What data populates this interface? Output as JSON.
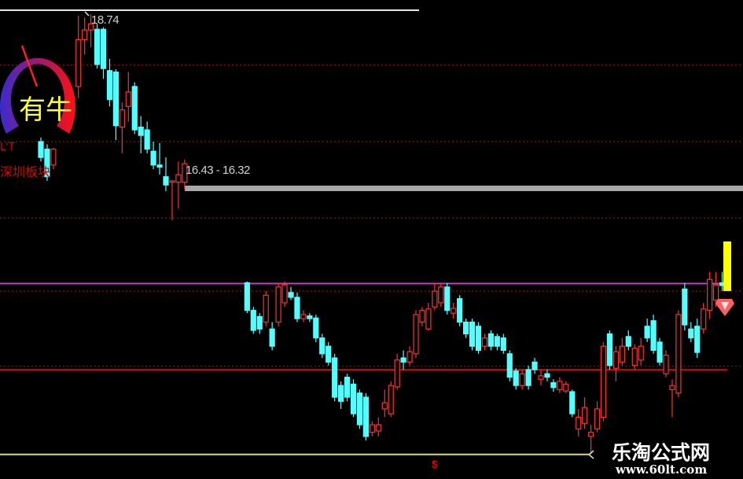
{
  "chart_data": {
    "type": "candlestick",
    "title": "",
    "ylim": [
      12.3,
      18.9
    ],
    "grid": false,
    "candle_format": [
      "open",
      "high",
      "low",
      "close"
    ],
    "candles": [
      [
        16.89,
        16.95,
        16.6,
        16.66
      ],
      [
        16.78,
        16.85,
        16.32,
        16.38
      ],
      [
        16.55,
        16.8,
        16.49,
        16.78
      ],
      null,
      null,
      null,
      [
        17.69,
        18.72,
        17.52,
        18.37
      ],
      [
        18.37,
        18.69,
        18.15,
        18.51
      ],
      [
        18.51,
        18.74,
        18.26,
        18.6
      ],
      [
        18.52,
        18.6,
        17.95,
        18.01
      ],
      [
        18.52,
        18.55,
        17.8,
        17.95
      ],
      [
        17.92,
        18.09,
        17.4,
        17.5
      ],
      [
        17.9,
        17.94,
        16.91,
        17.12
      ],
      [
        17.1,
        17.46,
        16.72,
        17.35
      ],
      [
        17.4,
        17.9,
        17.18,
        17.61
      ],
      [
        17.69,
        17.75,
        17.0,
        17.06
      ],
      [
        17.1,
        17.26,
        16.72,
        16.98
      ],
      [
        17.06,
        17.18,
        16.72,
        16.78
      ],
      [
        16.75,
        16.89,
        16.49,
        16.55
      ],
      [
        16.55,
        16.87,
        16.41,
        16.52
      ],
      [
        16.38,
        16.66,
        16.17,
        16.26
      ],
      [
        16.3,
        16.32,
        15.75,
        16.32
      ],
      [
        16.3,
        16.6,
        15.92,
        16.41
      ],
      [
        16.3,
        16.63,
        16.2,
        16.57
      ],
      null,
      null,
      null,
      null,
      null,
      null,
      null,
      null,
      null,
      [
        14.84,
        14.86,
        14.4,
        14.44
      ],
      [
        14.44,
        14.49,
        14.1,
        14.15
      ],
      [
        14.35,
        14.4,
        14.1,
        14.17
      ],
      [
        14.27,
        14.72,
        14.21,
        14.66
      ],
      [
        14.17,
        14.27,
        13.86,
        13.92
      ],
      [
        14.27,
        14.84,
        14.21,
        14.78
      ],
      [
        14.55,
        14.86,
        14.49,
        14.81
      ],
      [
        14.7,
        14.78,
        14.59,
        14.63
      ],
      [
        14.63,
        14.7,
        14.27,
        14.32
      ],
      [
        14.32,
        14.44,
        14.27,
        14.38
      ],
      [
        14.36,
        14.4,
        14.27,
        14.32
      ],
      [
        14.33,
        14.38,
        13.98,
        14.04
      ],
      [
        14.04,
        14.1,
        13.75,
        13.81
      ],
      [
        13.92,
        13.98,
        13.64,
        13.69
      ],
      [
        13.75,
        13.81,
        13.12,
        13.18
      ],
      [
        13.35,
        13.41,
        13.01,
        13.12
      ],
      [
        13.47,
        13.52,
        13.12,
        13.18
      ],
      [
        13.37,
        13.44,
        12.89,
        12.94
      ],
      [
        13.24,
        13.29,
        12.72,
        12.78
      ],
      [
        13.18,
        13.24,
        12.55,
        12.61
      ],
      [
        12.67,
        12.83,
        12.61,
        12.78
      ],
      [
        12.69,
        12.89,
        12.61,
        12.78
      ],
      [
        13.01,
        13.29,
        12.89,
        13.1
      ],
      [
        12.94,
        13.41,
        12.89,
        13.35
      ],
      [
        13.33,
        13.81,
        13.29,
        13.72
      ],
      [
        13.75,
        13.86,
        13.58,
        13.69
      ],
      [
        13.69,
        13.92,
        13.64,
        13.84
      ],
      [
        13.81,
        14.44,
        13.75,
        14.38
      ],
      [
        14.27,
        14.49,
        14.21,
        14.44
      ],
      [
        14.17,
        14.55,
        14.15,
        14.46
      ],
      [
        14.49,
        14.84,
        14.44,
        14.72
      ],
      [
        14.55,
        14.84,
        14.49,
        14.78
      ],
      [
        14.78,
        14.84,
        14.38,
        14.44
      ],
      [
        14.4,
        14.55,
        14.32,
        14.47
      ],
      [
        14.61,
        14.66,
        14.21,
        14.27
      ],
      [
        14.27,
        14.32,
        14.04,
        14.1
      ],
      [
        14.27,
        14.32,
        13.86,
        13.92
      ],
      [
        14.21,
        14.27,
        13.81,
        13.86
      ],
      [
        13.92,
        14.1,
        13.86,
        14.04
      ],
      [
        14.1,
        14.15,
        13.86,
        13.92
      ],
      [
        14.06,
        14.1,
        13.86,
        13.92
      ],
      [
        14.04,
        14.1,
        13.81,
        13.86
      ],
      [
        13.81,
        13.86,
        13.41,
        13.47
      ],
      [
        13.56,
        13.6,
        13.29,
        13.35
      ],
      [
        13.35,
        13.58,
        13.29,
        13.52
      ],
      [
        13.58,
        13.64,
        13.29,
        13.35
      ],
      [
        13.69,
        13.75,
        13.52,
        13.58
      ],
      [
        13.44,
        13.58,
        13.35,
        13.49
      ],
      [
        13.52,
        13.58,
        13.41,
        13.47
      ],
      [
        13.39,
        13.44,
        13.26,
        13.32
      ],
      [
        13.29,
        13.47,
        13.24,
        13.41
      ],
      [
        13.27,
        13.41,
        13.24,
        13.37
      ],
      [
        13.26,
        13.29,
        12.89,
        12.94
      ],
      [
        12.72,
        13.01,
        12.61,
        12.89
      ],
      [
        12.8,
        13.18,
        12.72,
        13.03
      ],
      [
        12.61,
        12.78,
        12.35,
        12.67
      ],
      [
        12.72,
        13.12,
        12.67,
        13.01
      ],
      [
        12.89,
        13.98,
        12.83,
        13.92
      ],
      [
        14.1,
        14.15,
        13.58,
        13.64
      ],
      [
        13.6,
        13.92,
        13.41,
        13.84
      ],
      [
        13.69,
        14.04,
        13.64,
        13.92
      ],
      [
        14.06,
        14.15,
        13.86,
        13.92
      ],
      [
        13.64,
        13.95,
        13.58,
        13.89
      ],
      [
        13.72,
        14.04,
        13.64,
        13.92
      ],
      [
        14.21,
        14.32,
        13.98,
        14.04
      ],
      [
        14.29,
        14.38,
        13.81,
        13.86
      ],
      [
        13.98,
        14.04,
        13.64,
        13.69
      ],
      [
        13.52,
        13.86,
        13.47,
        13.79
      ],
      [
        13.29,
        13.44,
        12.89,
        13.35
      ],
      [
        13.24,
        14.44,
        13.18,
        14.38
      ],
      [
        14.75,
        14.84,
        14.15,
        14.23
      ],
      [
        14.17,
        14.27,
        13.98,
        14.04
      ],
      [
        14.21,
        14.32,
        13.75,
        13.83
      ],
      [
        14.17,
        14.55,
        14.1,
        14.46
      ],
      [
        14.44,
        15.0,
        14.32,
        14.89
      ],
      [
        14.59,
        15.0,
        14.49,
        14.81
      ],
      [
        14.84,
        15.0,
        14.72,
        14.8
      ]
    ],
    "levels": [
      {
        "price": 14.83,
        "color": "#c040c0"
      },
      {
        "price": 13.58,
        "color": "#d00000"
      },
      {
        "price": 12.35,
        "color": "#e0e040"
      }
    ],
    "dotted_levels": [
      18.0,
      16.89,
      15.78,
      14.72,
      13.63
    ],
    "annotations": {
      "high_label": "18.74",
      "range_label": "16.43 - 16.32"
    },
    "colors": {
      "up": "#ff3030",
      "down": "#54ffff",
      "background": "#000000"
    }
  },
  "gauge": {
    "label": "有牛",
    "sector": "深圳板块",
    "prefix": "L'T"
  },
  "watermark": {
    "name": "乐淘公式网",
    "url": "www.60lt.com"
  },
  "marker": "$"
}
